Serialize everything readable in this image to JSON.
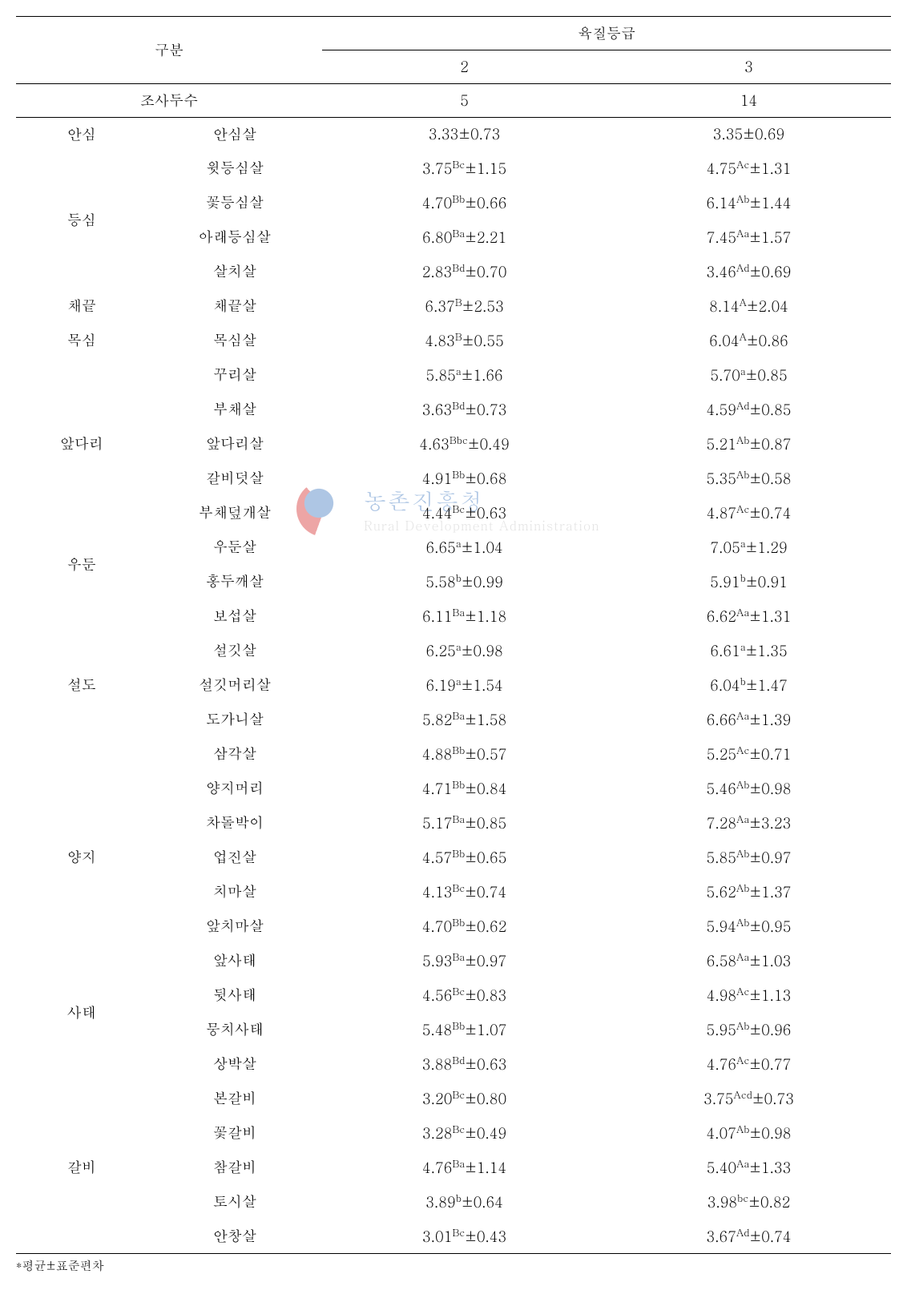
{
  "header": {
    "gubun": "구분",
    "grade_header": "육질등급",
    "grade_2": "2",
    "grade_3": "3",
    "survey_count_label": "조사두수",
    "survey_count_2": "5",
    "survey_count_3": "14"
  },
  "groups": [
    {
      "name": "안심",
      "rows": [
        {
          "cut": "안심살",
          "g2": "3.33±0.73",
          "sup2": "",
          "g3": "3.35±0.69",
          "sup3": ""
        }
      ]
    },
    {
      "name": "등심",
      "rows": [
        {
          "cut": "윗등심살",
          "g2": "3.75",
          "sup2": "Bc",
          "g2b": "±1.15",
          "g3": "4.75",
          "sup3": "Ac",
          "g3b": "±1.31"
        },
        {
          "cut": "꽃등심살",
          "g2": "4.70",
          "sup2": "Bb",
          "g2b": "±0.66",
          "g3": "6.14",
          "sup3": "Ab",
          "g3b": "±1.44"
        },
        {
          "cut": "아래등심살",
          "g2": "6.80",
          "sup2": "Ba",
          "g2b": "±2.21",
          "g3": "7.45",
          "sup3": "Aa",
          "g3b": "±1.57"
        },
        {
          "cut": "살치살",
          "g2": "2.83",
          "sup2": "Bd",
          "g2b": "±0.70",
          "g3": "3.46",
          "sup3": "Ad",
          "g3b": "±0.69"
        }
      ]
    },
    {
      "name": "채끝",
      "rows": [
        {
          "cut": "채끝살",
          "g2": "6.37",
          "sup2": "B",
          "g2b": "±2.53",
          "g3": "8.14",
          "sup3": "A",
          "g3b": "±2.04"
        }
      ]
    },
    {
      "name": "목심",
      "rows": [
        {
          "cut": "목심살",
          "g2": "4.83",
          "sup2": "B",
          "g2b": "±0.55",
          "g3": "6.04",
          "sup3": "A",
          "g3b": "±0.86"
        }
      ]
    },
    {
      "name": "앞다리",
      "rows": [
        {
          "cut": "꾸리살",
          "g2": "5.85",
          "sup2": "a",
          "g2b": "±1.66",
          "g3": "5.70",
          "sup3": "a",
          "g3b": "±0.85"
        },
        {
          "cut": "부채살",
          "g2": "3.63",
          "sup2": "Bd",
          "g2b": "±0.73",
          "g3": "4.59",
          "sup3": "Ad",
          "g3b": "±0.85"
        },
        {
          "cut": "앞다리살",
          "g2": "4.63",
          "sup2": "Bbc",
          "g2b": "±0.49",
          "g3": "5.21",
          "sup3": "Ab",
          "g3b": "±0.87"
        },
        {
          "cut": "갈비덧살",
          "g2": "4.91",
          "sup2": "Bb",
          "g2b": "±0.68",
          "g3": "5.35",
          "sup3": "Ab",
          "g3b": "±0.58"
        },
        {
          "cut": "부채덮개살",
          "g2": "4.44",
          "sup2": "Bc",
          "g2b": "±0.63",
          "g3": "4.87",
          "sup3": "Ac",
          "g3b": "±0.74"
        }
      ]
    },
    {
      "name": "우둔",
      "rows": [
        {
          "cut": "우둔살",
          "g2": "6.65",
          "sup2": "a",
          "g2b": "±1.04",
          "g3": "7.05",
          "sup3": "a",
          "g3b": "±1.29"
        },
        {
          "cut": "홍두깨살",
          "g2": "5.58",
          "sup2": "b",
          "g2b": "±0.99",
          "g3": "5.91",
          "sup3": "b",
          "g3b": "±0.91"
        }
      ]
    },
    {
      "name": "설도",
      "rows": [
        {
          "cut": "보섭살",
          "g2": "6.11",
          "sup2": "Ba",
          "g2b": "±1.18",
          "g3": "6.62",
          "sup3": "Aa",
          "g3b": "±1.31"
        },
        {
          "cut": "설깃살",
          "g2": "6.25",
          "sup2": "a",
          "g2b": "±0.98",
          "g3": "6.61",
          "sup3": "a",
          "g3b": "±1.35"
        },
        {
          "cut": "설깃머리살",
          "g2": "6.19",
          "sup2": "a",
          "g2b": "±1.54",
          "g3": "6.04",
          "sup3": "b",
          "g3b": "±1.47"
        },
        {
          "cut": "도가니살",
          "g2": "5.82",
          "sup2": "Ba",
          "g2b": "±1.58",
          "g3": "6.66",
          "sup3": "Aa",
          "g3b": "±1.39"
        },
        {
          "cut": "삼각살",
          "g2": "4.88",
          "sup2": "Bb",
          "g2b": "±0.57",
          "g3": "5.25",
          "sup3": "Ac",
          "g3b": "±0.71"
        }
      ]
    },
    {
      "name": "양지",
      "rows": [
        {
          "cut": "양지머리",
          "g2": "4.71",
          "sup2": "Bb",
          "g2b": "±0.84",
          "g3": "5.46",
          "sup3": "Ab",
          "g3b": "±0.98"
        },
        {
          "cut": "차돌박이",
          "g2": "5.17",
          "sup2": "Ba",
          "g2b": "±0.85",
          "g3": "7.28",
          "sup3": "Aa",
          "g3b": "±3.23"
        },
        {
          "cut": "업진살",
          "g2": "4.57",
          "sup2": "Bb",
          "g2b": "±0.65",
          "g3": "5.85",
          "sup3": "Ab",
          "g3b": "±0.97"
        },
        {
          "cut": "치마살",
          "g2": "4.13",
          "sup2": "Bc",
          "g2b": "±0.74",
          "g3": "5.62",
          "sup3": "Ab",
          "g3b": "±1.37"
        },
        {
          "cut": "앞치마살",
          "g2": "4.70",
          "sup2": "Bb",
          "g2b": "±0.62",
          "g3": "5.94",
          "sup3": "Ab",
          "g3b": "±0.95"
        }
      ]
    },
    {
      "name": "사태",
      "rows": [
        {
          "cut": "앞사태",
          "g2": "5.93",
          "sup2": "Ba",
          "g2b": "±0.97",
          "g3": "6.58",
          "sup3": "Aa",
          "g3b": "±1.03"
        },
        {
          "cut": "뒷사태",
          "g2": "4.56",
          "sup2": "Bc",
          "g2b": "±0.83",
          "g3": "4.98",
          "sup3": "Ac",
          "g3b": "±1.13"
        },
        {
          "cut": "뭉치사태",
          "g2": "5.48",
          "sup2": "Bb",
          "g2b": "±1.07",
          "g3": "5.95",
          "sup3": "Ab",
          "g3b": "±0.96"
        },
        {
          "cut": "상박살",
          "g2": "3.88",
          "sup2": "Bd",
          "g2b": "±0.63",
          "g3": "4.76",
          "sup3": "Ac",
          "g3b": "±0.77"
        }
      ]
    },
    {
      "name": "갈비",
      "rows": [
        {
          "cut": "본갈비",
          "g2": "3.20",
          "sup2": "Bc",
          "g2b": "±0.80",
          "g3": "3.75",
          "sup3": "Acd",
          "g3b": "±0.73"
        },
        {
          "cut": "꽃갈비",
          "g2": "3.28",
          "sup2": "Bc",
          "g2b": "±0.49",
          "g3": "4.07",
          "sup3": "Ab",
          "g3b": "±0.98"
        },
        {
          "cut": "참갈비",
          "g2": "4.76",
          "sup2": "Ba",
          "g2b": "±1.14",
          "g3": "5.40",
          "sup3": "Aa",
          "g3b": "±1.33"
        },
        {
          "cut": "토시살",
          "g2": "3.89",
          "sup2": "b",
          "g2b": "±0.64",
          "g3": "3.98",
          "sup3": "bc",
          "g3b": "±0.82"
        },
        {
          "cut": "안창살",
          "g2": "3.01",
          "sup2": "Bc",
          "g2b": "±0.43",
          "g3": "3.67",
          "sup3": "Ad",
          "g3b": "±0.74"
        }
      ]
    }
  ],
  "footnote": "*평균±표준편차",
  "watermark": {
    "kr": "농촌진흥청",
    "en": "Rural Development Administration"
  }
}
